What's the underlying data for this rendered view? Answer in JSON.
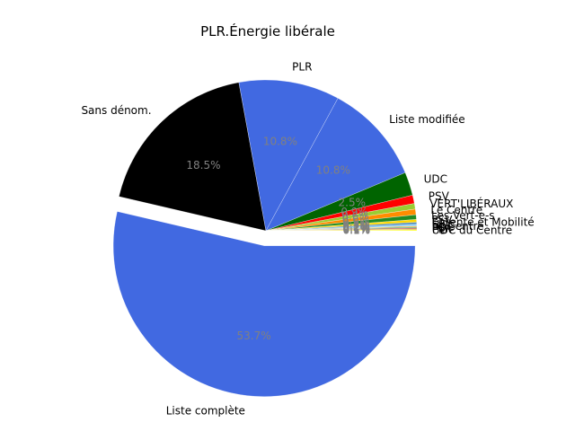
{
  "chart_data": {
    "type": "pie",
    "title": "PLR.Énergie libérale",
    "start_angle_deg": 0,
    "direction": "clockwise",
    "explode": {
      "Liste complète": 0.1
    },
    "slices": [
      {
        "label": "Liste complète",
        "value": 53.7,
        "pct": "53.7%",
        "color": "#4169e1"
      },
      {
        "label": "Sans dénom.",
        "value": 18.5,
        "pct": "18.5%",
        "color": "#000000"
      },
      {
        "label": "PLR",
        "value": 10.8,
        "pct": "10.8%",
        "color": "#4169e1"
      },
      {
        "label": "Liste modifiée",
        "value": 10.8,
        "pct": "10.8%",
        "color": "#4169e1"
      },
      {
        "label": "UDC",
        "value": 2.5,
        "pct": "2.5%",
        "color": "#006400"
      },
      {
        "label": "PSV",
        "value": 0.9,
        "pct": "0.9%",
        "color": "#ff0000"
      },
      {
        "label": "VERT'LIBÉRAUX",
        "value": 0.6,
        "pct": "0.6%",
        "color": "#9acd32"
      },
      {
        "label": "Le Centre",
        "value": 0.6,
        "pct": "0.6%",
        "color": "#ff8c00"
      },
      {
        "label": "Les Vert-e-s",
        "value": 0.5,
        "pct": "0.5%",
        "color": "#228b22"
      },
      {
        "label": "PSV",
        "value": 0.3,
        "pct": "0.3%",
        "color": "#ffd700"
      },
      {
        "label": "Entente et Mobilité",
        "value": 0.2,
        "pct": "0.2%",
        "color": "#4682b4"
      },
      {
        "label": "UDC",
        "value": 0.2,
        "pct": "0.2%",
        "color": "#87cefa"
      },
      {
        "label": "Le Centre",
        "value": 0.1,
        "pct": "0.1%",
        "color": "#ffa500"
      },
      {
        "label": "PDC",
        "value": 0.1,
        "pct": "0.1%",
        "color": "#2e8b57"
      },
      {
        "label": "PS",
        "value": 0.1,
        "pct": "0.1%",
        "color": "#b22222"
      },
      {
        "label": "PLR",
        "value": 0.1,
        "pct": "0.1%",
        "color": "#daa520"
      },
      {
        "label": "UDC du Centre",
        "value": 0.1,
        "pct": "0.1%",
        "color": "#ffff00"
      }
    ]
  }
}
